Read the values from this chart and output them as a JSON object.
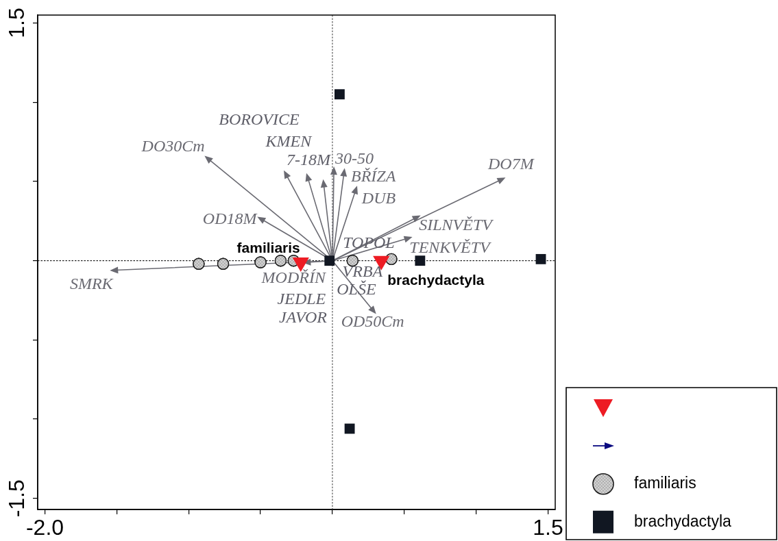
{
  "chart_data": {
    "type": "scatter",
    "xlim": [
      -2.05,
      1.55
    ],
    "ylim": [
      -1.57,
      1.55
    ],
    "xticks": [
      {
        "value": -2,
        "label": "-2.0"
      },
      {
        "value": -1.5,
        "label": null
      },
      {
        "value": -1,
        "label": null
      },
      {
        "value": -0.5,
        "label": null
      },
      {
        "value": 0,
        "label": null
      },
      {
        "value": 0.5,
        "label": null
      },
      {
        "value": 1,
        "label": null
      },
      1.5
    ],
    "yticks": [
      -1.5,
      {
        "value": -1,
        "label": null
      },
      {
        "value": -0.5,
        "label": null
      },
      {
        "value": 0,
        "label": null
      },
      {
        "value": 0.5,
        "label": null
      },
      {
        "value": 1,
        "label": null
      },
      1.5
    ],
    "legend": "bottom right",
    "ref_lines": [
      {
        "axis": "x",
        "value": 0,
        "line_style": "dotted",
        "color": "#666666"
      },
      {
        "axis": "y",
        "value": 0,
        "line_style": "dotted",
        "color": "#222222"
      }
    ],
    "series": [
      {
        "marker": "triangle",
        "color": "#ed1c24",
        "x": [
          -0.22,
          0.34
        ],
        "values": [
          -0.01,
          0
        ],
        "value_labels": [
          "familiaris",
          "brachydactyla"
        ]
      },
      {
        "name": "SMRK",
        "type": "line",
        "color": "#6a6a72",
        "x": [
          0,
          -1.51
        ],
        "values": [
          0,
          -0.06
        ]
      },
      {
        "name": "DO30Cm",
        "type": "line",
        "color": "#6a6a72",
        "x": [
          0,
          -0.86
        ],
        "values": [
          0,
          0.64
        ]
      },
      {
        "name": "OD18M",
        "type": "line",
        "color": "#6a6a72",
        "x": [
          0,
          -0.49
        ],
        "values": [
          0,
          0.26
        ]
      },
      {
        "type": "line",
        "color": "#6a6a72",
        "x": [
          0,
          -0.32
        ],
        "values": [
          0,
          0.54
        ]
      },
      {
        "type": "line",
        "color": "#6a6a72",
        "x": [
          0,
          -0.17
        ],
        "values": [
          0,
          0.52
        ]
      },
      {
        "type": "line",
        "color": "#6a6a72",
        "x": [
          0,
          -0.06
        ],
        "values": [
          0,
          0.48
        ]
      },
      {
        "name": "30-50",
        "type": "line",
        "color": "#6a6a72",
        "x": [
          0,
          0.01
        ],
        "values": [
          0,
          0.56
        ]
      },
      {
        "name": "BŘÍZA",
        "type": "line",
        "color": "#6a6a72",
        "x": [
          0,
          0.08
        ],
        "values": [
          0,
          0.55
        ]
      },
      {
        "name": "DUB",
        "type": "line",
        "color": "#6a6a72",
        "x": [
          0,
          0.16
        ],
        "values": [
          0,
          0.44
        ]
      },
      {
        "name": "DO7M",
        "type": "line",
        "color": "#6a6a72",
        "x": [
          0,
          1.17
        ],
        "values": [
          0,
          0.51
        ]
      },
      {
        "name": "SILNVĚTV",
        "type": "line",
        "color": "#6a6a72",
        "x": [
          0,
          0.58
        ],
        "values": [
          0,
          0.27
        ]
      },
      {
        "name": "TENKVĚTV",
        "type": "line",
        "color": "#6a6a72",
        "x": [
          0,
          0.52
        ],
        "values": [
          0,
          0.14
        ]
      },
      {
        "name": "MODŘÍN",
        "type": "line",
        "color": "#6a6a72",
        "x": [
          0,
          -0.17
        ],
        "values": [
          0,
          -0.01
        ]
      },
      {
        "name": "OD50Cm",
        "type": "line",
        "color": "#6a6a72",
        "x": [
          0,
          0.28
        ],
        "values": [
          0,
          -0.31
        ]
      },
      {
        "name": "familiaris",
        "marker": "circle",
        "color": "#1a1a1a",
        "x": [
          -0.93,
          -0.76,
          -0.5,
          -0.36,
          -0.27,
          0.14,
          0.41
        ],
        "values": [
          -0.02,
          -0.02,
          -0.01,
          0,
          0,
          0,
          0.01
        ]
      },
      {
        "name": "brachydactyla",
        "marker": "square",
        "color": "#111722",
        "x": [
          -0.02,
          0.05,
          0.12,
          0.61,
          1.45
        ],
        "values": [
          0,
          1.05,
          -1.06,
          0,
          0.01
        ]
      }
    ],
    "annotations": [
      "BOROVICE",
      "KMEN",
      "7-18M",
      "TOPOL",
      "VRBA",
      "OLŠE",
      "JEDLE",
      "JAVOR"
    ]
  }
}
